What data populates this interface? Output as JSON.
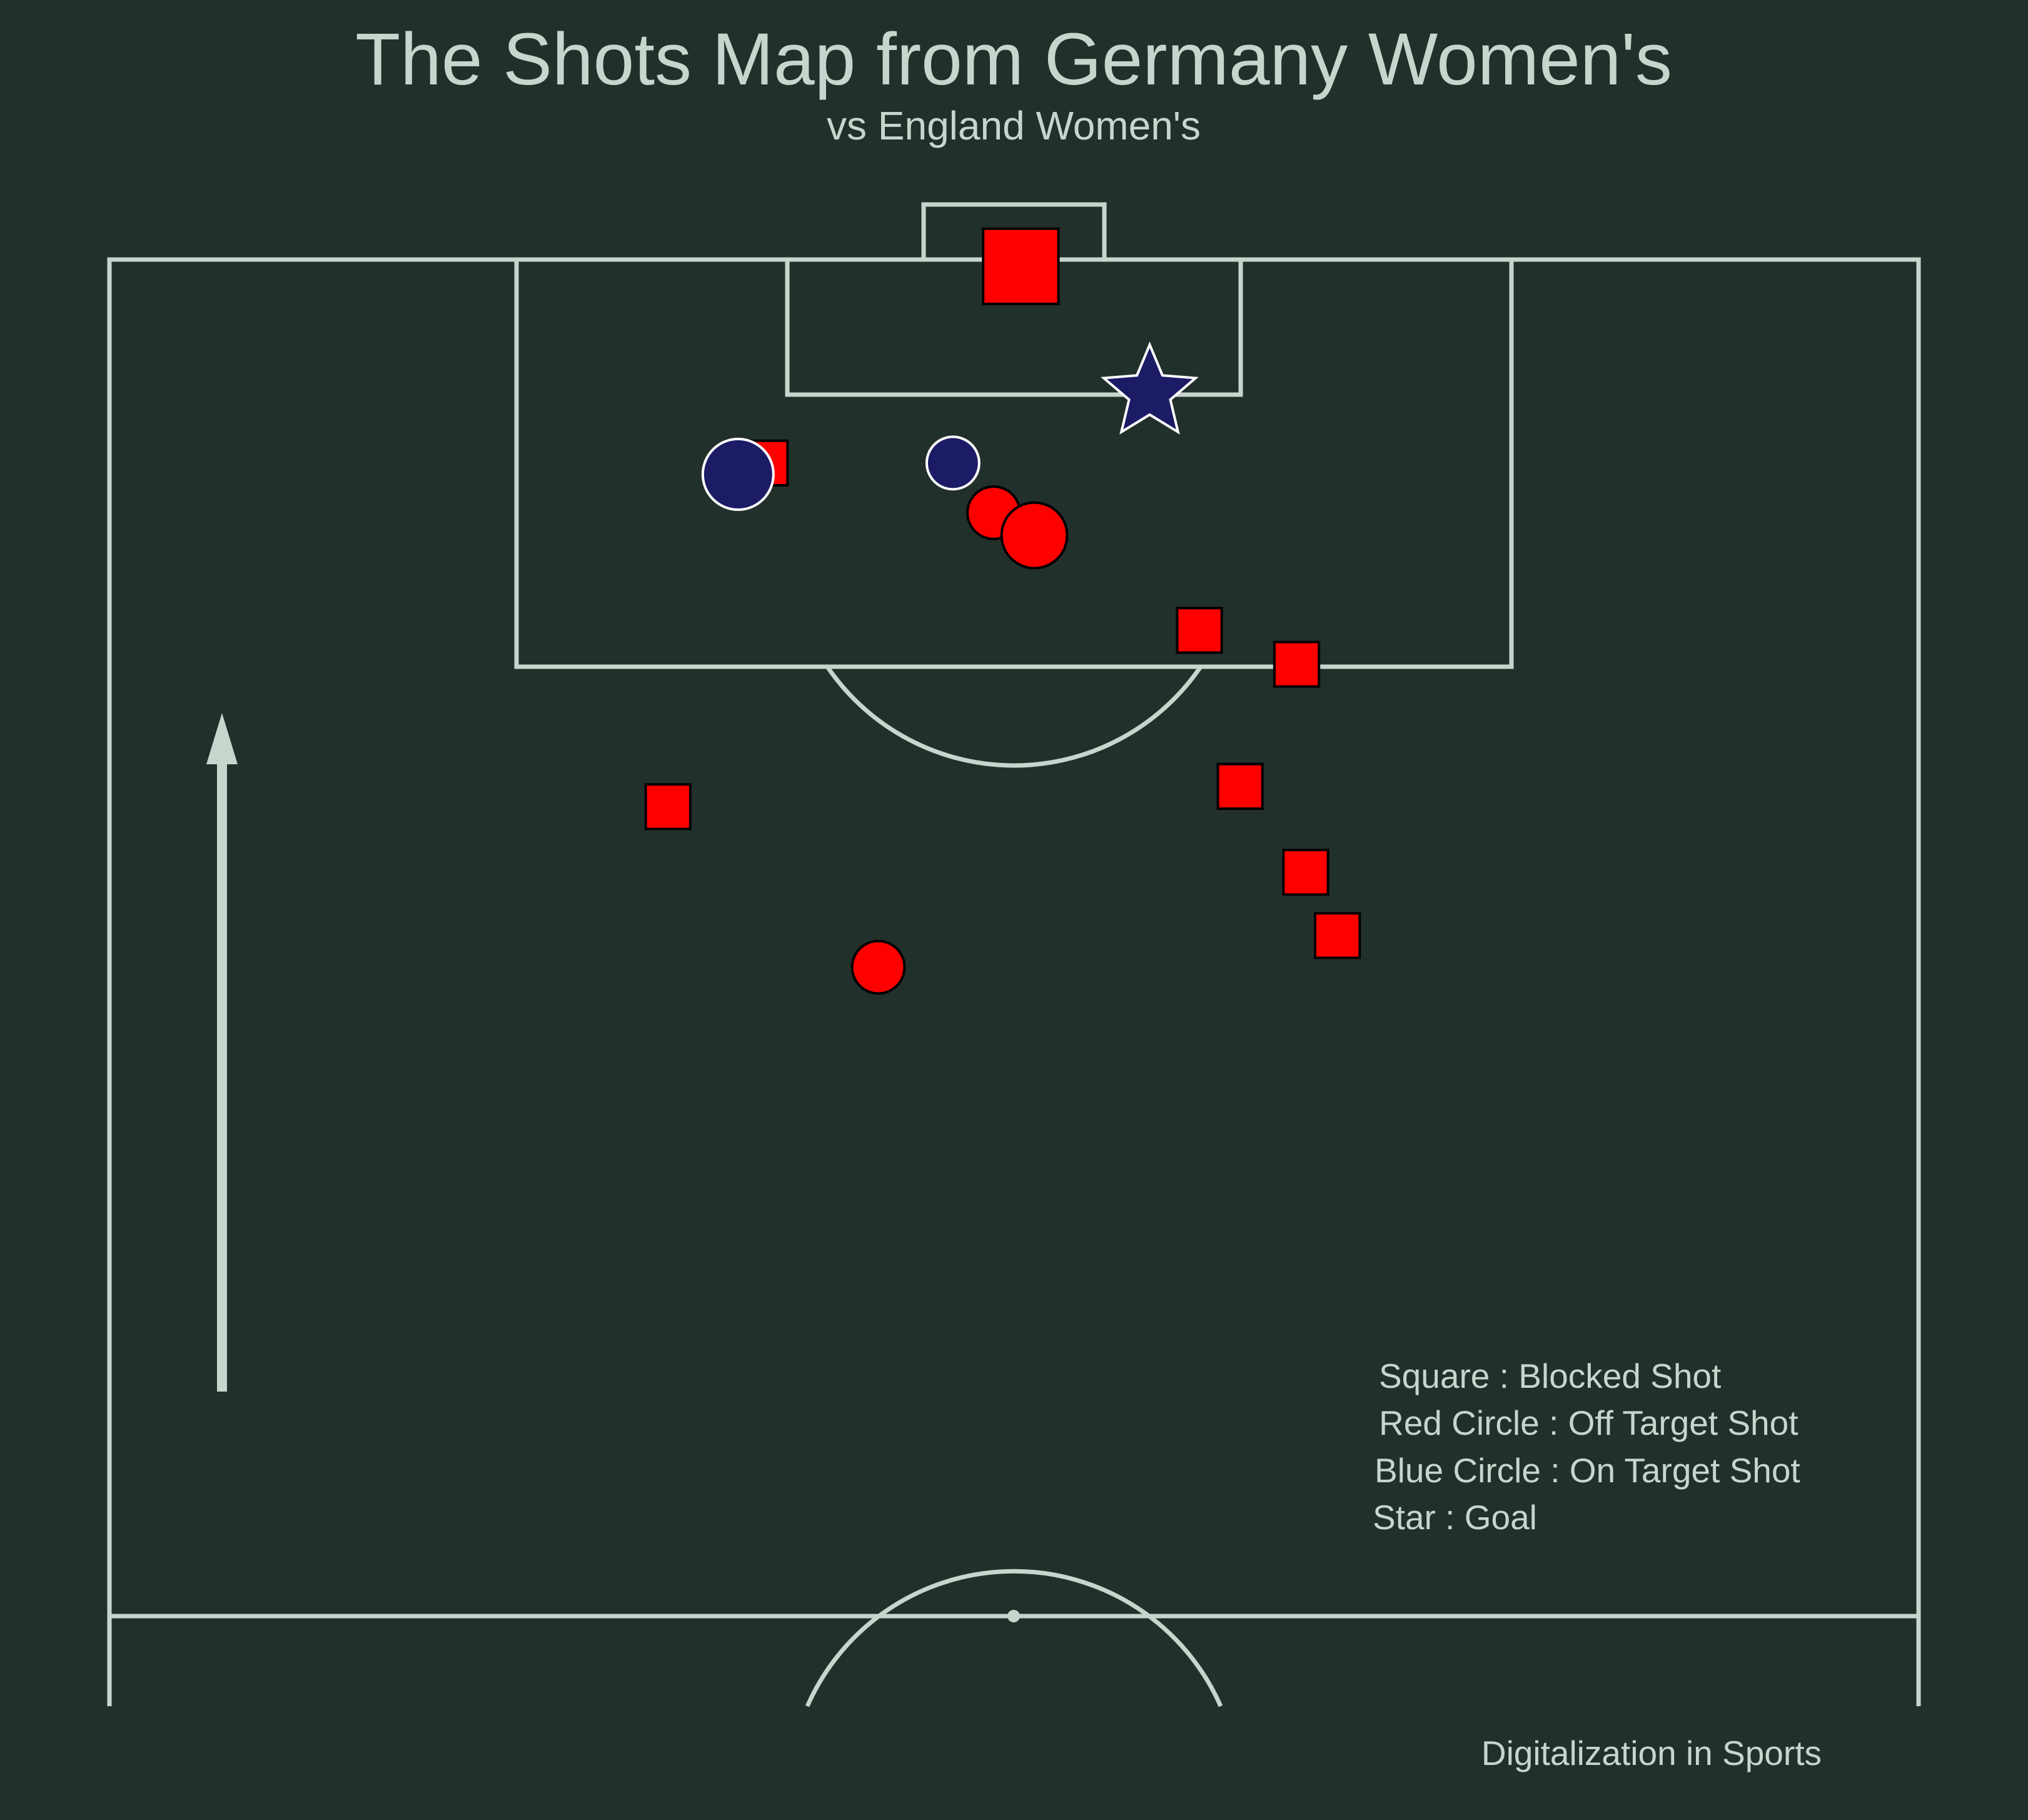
{
  "title": "The Shots Map from Germany Women's",
  "subtitle": "vs England Women's",
  "credit": "Digitalization in Sports",
  "legend": [
    "Square : Blocked Shot",
    "Red Circle : Off Target Shot",
    "Blue Circle : On Target Shot",
    "Star : Goal"
  ],
  "colors": {
    "background": "#22302c",
    "lines": "#c7d5cc",
    "text": "#c7d5cc",
    "blocked": "#ff0000",
    "off_target": "#ff0000",
    "on_target": "#1b1b66",
    "goal": "#1b1b66"
  },
  "chart_data": {
    "type": "scatter",
    "title": "The Shots Map from Germany Women's",
    "subtitle": "vs England Women's",
    "pitch": {
      "length": 120,
      "width": 80,
      "orientation": "vertical",
      "half": "attacking",
      "view_x_range": [
        60,
        120
      ]
    },
    "attack_direction": "up",
    "legend_placement": "bottom-right",
    "series": [
      {
        "name": "Square : Blocked Shot",
        "marker": "square",
        "color": "#ff0000",
        "points": [
          {
            "x": 103.6,
            "y": 48.2,
            "xg": 0.03
          },
          {
            "x": 111.0,
            "y": 29.0,
            "xg": 0.03
          },
          {
            "x": 102.1,
            "y": 52.5,
            "xg": 0.03
          },
          {
            "x": 96.7,
            "y": 50.0,
            "xg": 0.03
          },
          {
            "x": 95.8,
            "y": 24.7,
            "xg": 0.03
          },
          {
            "x": 92.9,
            "y": 52.9,
            "xg": 0.03
          },
          {
            "x": 90.1,
            "y": 54.3,
            "xg": 0.03
          },
          {
            "x": 119.7,
            "y": 40.3,
            "xg": 0.18
          }
        ]
      },
      {
        "name": "Red Circle : Off Target Shot",
        "marker": "circle",
        "color": "#ff0000",
        "points": [
          {
            "x": 108.8,
            "y": 39.1,
            "xg": 0.03
          },
          {
            "x": 107.8,
            "y": 40.9,
            "xg": 0.07
          },
          {
            "x": 88.7,
            "y": 34.0,
            "xg": 0.03
          }
        ]
      },
      {
        "name": "Blue Circle : On Target Shot",
        "marker": "circle",
        "color": "#1b1b66",
        "points": [
          {
            "x": 110.5,
            "y": 27.8,
            "xg": 0.09
          },
          {
            "x": 111.0,
            "y": 37.3,
            "xg": 0.03
          }
        ]
      },
      {
        "name": "Star : Goal",
        "marker": "star",
        "color": "#1b1b66",
        "points": [
          {
            "x": 114.1,
            "y": 46.0,
            "xg": 0.2
          }
        ]
      }
    ]
  }
}
